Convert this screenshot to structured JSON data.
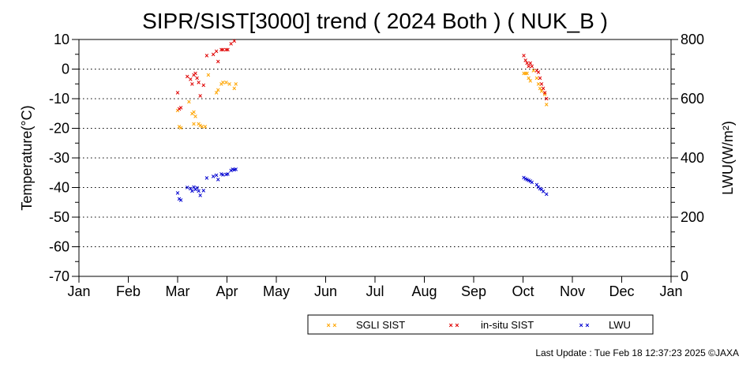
{
  "chart_data": {
    "type": "scatter",
    "title": "SIPR/SIST[3000] trend ( 2024 Both ) ( NUK_B )",
    "xlabel": "",
    "ylabel": "Temperature(°C)",
    "y2label": "LWU(W/m²)",
    "x_ticks": [
      "Jan",
      "Feb",
      "Mar",
      "Apr",
      "May",
      "Jun",
      "Jul",
      "Aug",
      "Sep",
      "Oct",
      "Nov",
      "Dec",
      "Jan"
    ],
    "y_ticks": [
      "10",
      "0",
      "-10",
      "-20",
      "-30",
      "-40",
      "-50",
      "-60",
      "-70"
    ],
    "y2_ticks": [
      "800",
      "600",
      "400",
      "200",
      "0"
    ],
    "ylim": [
      -70,
      10
    ],
    "y2lim": [
      0,
      800
    ],
    "xlim_day_of_year": [
      1,
      367
    ],
    "grid": "horizontal dotted",
    "legend_position": "bottom-center",
    "marker": "×",
    "series": [
      {
        "name": "SGLI SIST",
        "color": "#ffa500",
        "axis": "left",
        "points": [
          [
            "2024-03-02",
            -14
          ],
          [
            "2024-03-03",
            -19.5
          ],
          [
            "2024-03-04",
            -19.8
          ],
          [
            "2024-03-09",
            -11
          ],
          [
            "2024-03-11",
            -15
          ],
          [
            "2024-03-12",
            -18.5
          ],
          [
            "2024-03-12",
            -14.5
          ],
          [
            "2024-03-13",
            -16
          ],
          [
            "2024-03-15",
            -18.5
          ],
          [
            "2024-03-16",
            -19
          ],
          [
            "2024-03-17",
            -19.5
          ],
          [
            "2024-03-19",
            -19.5
          ],
          [
            "2024-03-21",
            -2
          ],
          [
            "2024-03-26",
            -8
          ],
          [
            "2024-03-27",
            -7
          ],
          [
            "2024-03-29",
            -5
          ],
          [
            "2024-03-30",
            -4.5
          ],
          [
            "2024-04-01",
            -4.5
          ],
          [
            "2024-04-03",
            -5
          ],
          [
            "2024-04-06",
            -6.5
          ],
          [
            "2024-04-07",
            -5
          ],
          [
            "2024-10-02",
            -1.5
          ],
          [
            "2024-10-03",
            -1.5
          ],
          [
            "2024-10-04",
            -1.5
          ],
          [
            "2024-10-05",
            -3
          ],
          [
            "2024-10-06",
            -4
          ],
          [
            "2024-10-08",
            -0.5
          ],
          [
            "2024-10-10",
            -3
          ],
          [
            "2024-10-11",
            -5
          ],
          [
            "2024-10-12",
            -6.5
          ],
          [
            "2024-10-13",
            -7.5
          ],
          [
            "2024-10-15",
            -8.5
          ],
          [
            "2024-10-16",
            -12
          ]
        ]
      },
      {
        "name": "in-situ SIST",
        "color": "#e00000",
        "axis": "left",
        "points": [
          [
            "2024-03-02",
            -8
          ],
          [
            "2024-03-03",
            -13.5
          ],
          [
            "2024-03-04",
            -13
          ],
          [
            "2024-03-08",
            -2.5
          ],
          [
            "2024-03-10",
            -3.5
          ],
          [
            "2024-03-11",
            -5
          ],
          [
            "2024-03-12",
            -2
          ],
          [
            "2024-03-13",
            -1.5
          ],
          [
            "2024-03-14",
            -3
          ],
          [
            "2024-03-15",
            -4.5
          ],
          [
            "2024-03-16",
            -9
          ],
          [
            "2024-03-18",
            -5.5
          ],
          [
            "2024-03-20",
            4.5
          ],
          [
            "2024-03-24",
            5
          ],
          [
            "2024-03-26",
            6
          ],
          [
            "2024-03-27",
            2.5
          ],
          [
            "2024-03-29",
            6.5
          ],
          [
            "2024-03-30",
            6.5
          ],
          [
            "2024-04-01",
            6.5
          ],
          [
            "2024-04-02",
            6.5
          ],
          [
            "2024-04-04",
            8.5
          ],
          [
            "2024-04-06",
            9.5
          ],
          [
            "2024-10-02",
            4.5
          ],
          [
            "2024-10-03",
            3
          ],
          [
            "2024-10-04",
            2
          ],
          [
            "2024-10-05",
            1
          ],
          [
            "2024-10-06",
            2
          ],
          [
            "2024-10-07",
            1
          ],
          [
            "2024-10-10",
            -0.5
          ],
          [
            "2024-10-11",
            -1
          ],
          [
            "2024-10-12",
            -3
          ],
          [
            "2024-10-13",
            -5
          ],
          [
            "2024-10-14",
            -6.5
          ],
          [
            "2024-10-15",
            -8
          ],
          [
            "2024-10-16",
            -10
          ]
        ]
      },
      {
        "name": "LWU",
        "color": "#0000d0",
        "axis": "right",
        "points": [
          [
            "2024-03-02",
            282
          ],
          [
            "2024-03-03",
            262
          ],
          [
            "2024-03-04",
            257
          ],
          [
            "2024-03-08",
            300
          ],
          [
            "2024-03-10",
            296
          ],
          [
            "2024-03-11",
            288
          ],
          [
            "2024-03-12",
            301
          ],
          [
            "2024-03-13",
            293
          ],
          [
            "2024-03-14",
            299
          ],
          [
            "2024-03-15",
            288
          ],
          [
            "2024-03-16",
            274
          ],
          [
            "2024-03-18",
            289
          ],
          [
            "2024-03-20",
            332
          ],
          [
            "2024-03-24",
            338
          ],
          [
            "2024-03-26",
            341
          ],
          [
            "2024-03-27",
            327
          ],
          [
            "2024-03-29",
            345
          ],
          [
            "2024-03-30",
            343
          ],
          [
            "2024-04-01",
            344
          ],
          [
            "2024-04-02",
            346
          ],
          [
            "2024-04-04",
            358
          ],
          [
            "2024-04-05",
            362
          ],
          [
            "2024-04-06",
            360
          ],
          [
            "2024-04-07",
            362
          ],
          [
            "2024-10-02",
            334
          ],
          [
            "2024-10-03",
            330
          ],
          [
            "2024-10-04",
            327
          ],
          [
            "2024-10-05",
            324
          ],
          [
            "2024-10-06",
            322
          ],
          [
            "2024-10-07",
            317
          ],
          [
            "2024-10-10",
            309
          ],
          [
            "2024-10-11",
            301
          ],
          [
            "2024-10-12",
            296
          ],
          [
            "2024-10-13",
            293
          ],
          [
            "2024-10-14",
            287
          ],
          [
            "2024-10-16",
            277
          ]
        ]
      }
    ]
  },
  "legend": {
    "items": [
      {
        "label": "SGLI SIST",
        "color": "#ffa500"
      },
      {
        "label": "in-situ SIST",
        "color": "#e00000"
      },
      {
        "label": "LWU",
        "color": "#0000d0"
      }
    ]
  },
  "footer": {
    "last_update": "Last Update : Tue Feb 18 12:37:23 2025 ©JAXA"
  }
}
